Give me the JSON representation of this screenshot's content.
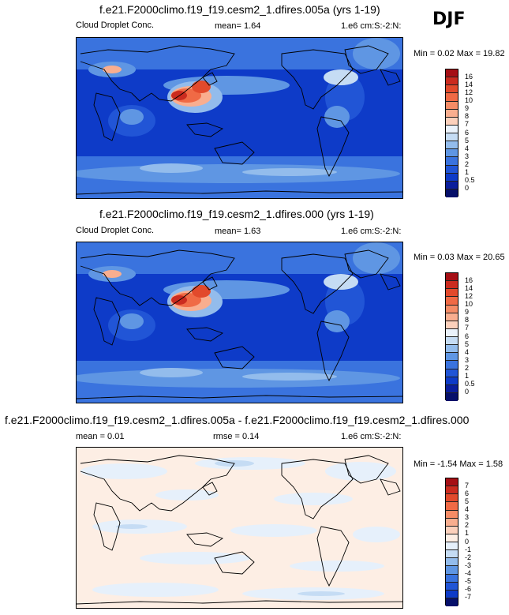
{
  "season": "DJF",
  "chart_data": [
    {
      "type": "heatmap",
      "title": "f.e21.F2000climo.f19_f19.cesm2_1.dfires.005a (yrs 1-19)",
      "variable": "Cloud Droplet Conc.",
      "stat1": "mean=   1.64",
      "units": "1.e6 cm:S:-2:N:",
      "minmax": "Min =   0.02 Max =  19.82",
      "levels": [
        "16",
        "14",
        "12",
        "10",
        "9",
        "8",
        "7",
        "6",
        "5",
        "4",
        "3",
        "2",
        "1",
        "0.5",
        "0"
      ],
      "colors": [
        "#a50f15",
        "#cb2b1f",
        "#e24a2c",
        "#f06a45",
        "#f58c66",
        "#f9ae8f",
        "#fcd0bb",
        "#eaf2fb",
        "#c5dcf4",
        "#93bcec",
        "#5f96e3",
        "#3a73de",
        "#2155d6",
        "#0e3bc8",
        "#0a1e9c",
        "#06106a"
      ],
      "ocean_color": "#0e3bc8"
    },
    {
      "type": "heatmap",
      "title": "f.e21.F2000climo.f19_f19.cesm2_1.dfires.000 (yrs 1-19)",
      "variable": "Cloud Droplet Conc.",
      "stat1": "mean=   1.63",
      "units": "1.e6 cm:S:-2:N:",
      "minmax": "Min =   0.03 Max =  20.65",
      "levels": [
        "16",
        "14",
        "12",
        "10",
        "9",
        "8",
        "7",
        "6",
        "5",
        "4",
        "3",
        "2",
        "1",
        "0.5",
        "0"
      ],
      "colors": [
        "#a50f15",
        "#cb2b1f",
        "#e24a2c",
        "#f06a45",
        "#f58c66",
        "#f9ae8f",
        "#fcd0bb",
        "#eaf2fb",
        "#c5dcf4",
        "#93bcec",
        "#5f96e3",
        "#3a73de",
        "#2155d6",
        "#0e3bc8",
        "#0a1e9c",
        "#06106a"
      ],
      "ocean_color": "#0e3bc8"
    },
    {
      "type": "heatmap",
      "title": "f.e21.F2000climo.f19_f19.cesm2_1.dfires.005a - f.e21.F2000climo.f19_f19.cesm2_1.dfires.000",
      "stat1": "mean =   0.01",
      "stat2": "rmse =   0.14",
      "units": "1.e6 cm:S:-2:N:",
      "minmax": "Min =  -1.54 Max =   1.58",
      "levels": [
        "7",
        "6",
        "5",
        "4",
        "3",
        "2",
        "1",
        "0",
        "-1",
        "-2",
        "-3",
        "-4",
        "-5",
        "-6",
        "-7"
      ],
      "colors": [
        "#a50f15",
        "#cb2b1f",
        "#e24a2c",
        "#f06a45",
        "#f58c66",
        "#f9ae8f",
        "#fcd0bb",
        "#fdeee4",
        "#e6f0fb",
        "#c5dcf4",
        "#93bcec",
        "#5f96e3",
        "#3a73de",
        "#2155d6",
        "#0e3bc8",
        "#06106a"
      ],
      "ocean_color": "#dfeafb"
    }
  ]
}
